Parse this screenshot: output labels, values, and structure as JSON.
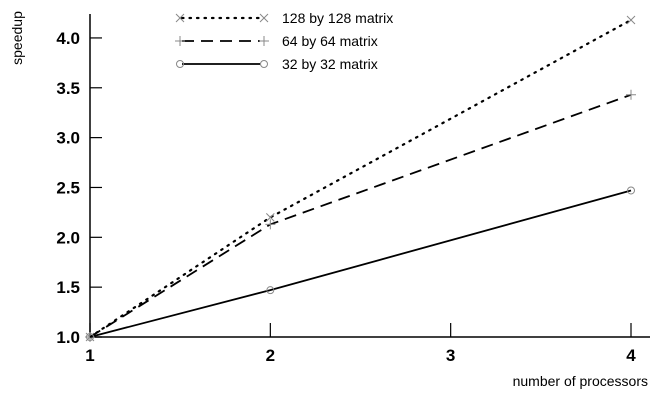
{
  "chart_data": {
    "type": "line",
    "xlabel": "number of processors",
    "ylabel": "speedup",
    "xlim": [
      1,
      4
    ],
    "ylim": [
      1.0,
      4.2
    ],
    "xticks": [
      1,
      2,
      3,
      4
    ],
    "xtick_labels": [
      "1",
      "2",
      "3",
      "4"
    ],
    "yticks": [
      1.0,
      1.5,
      2.0,
      2.5,
      3.0,
      3.5,
      4.0
    ],
    "ytick_labels": [
      "1.0",
      "1.5",
      "2.0",
      "2.5",
      "3.0",
      "3.5",
      "4.0"
    ],
    "grid": false,
    "legend_position": "top-center",
    "series": [
      {
        "name": "128 by 128 matrix",
        "marker": "x",
        "line": "dotted",
        "color": "#000000",
        "x": [
          1,
          2,
          4
        ],
        "y": [
          1.0,
          2.2,
          4.18
        ]
      },
      {
        "name": "64 by 64 matrix",
        "marker": "+",
        "line": "dashed",
        "color": "#000000",
        "x": [
          1,
          2,
          4
        ],
        "y": [
          1.0,
          2.13,
          3.43
        ]
      },
      {
        "name": "32 by 32 matrix",
        "marker": "o",
        "line": "solid",
        "color": "#000000",
        "x": [
          1,
          2,
          4
        ],
        "y": [
          1.0,
          1.47,
          2.47
        ]
      }
    ]
  }
}
